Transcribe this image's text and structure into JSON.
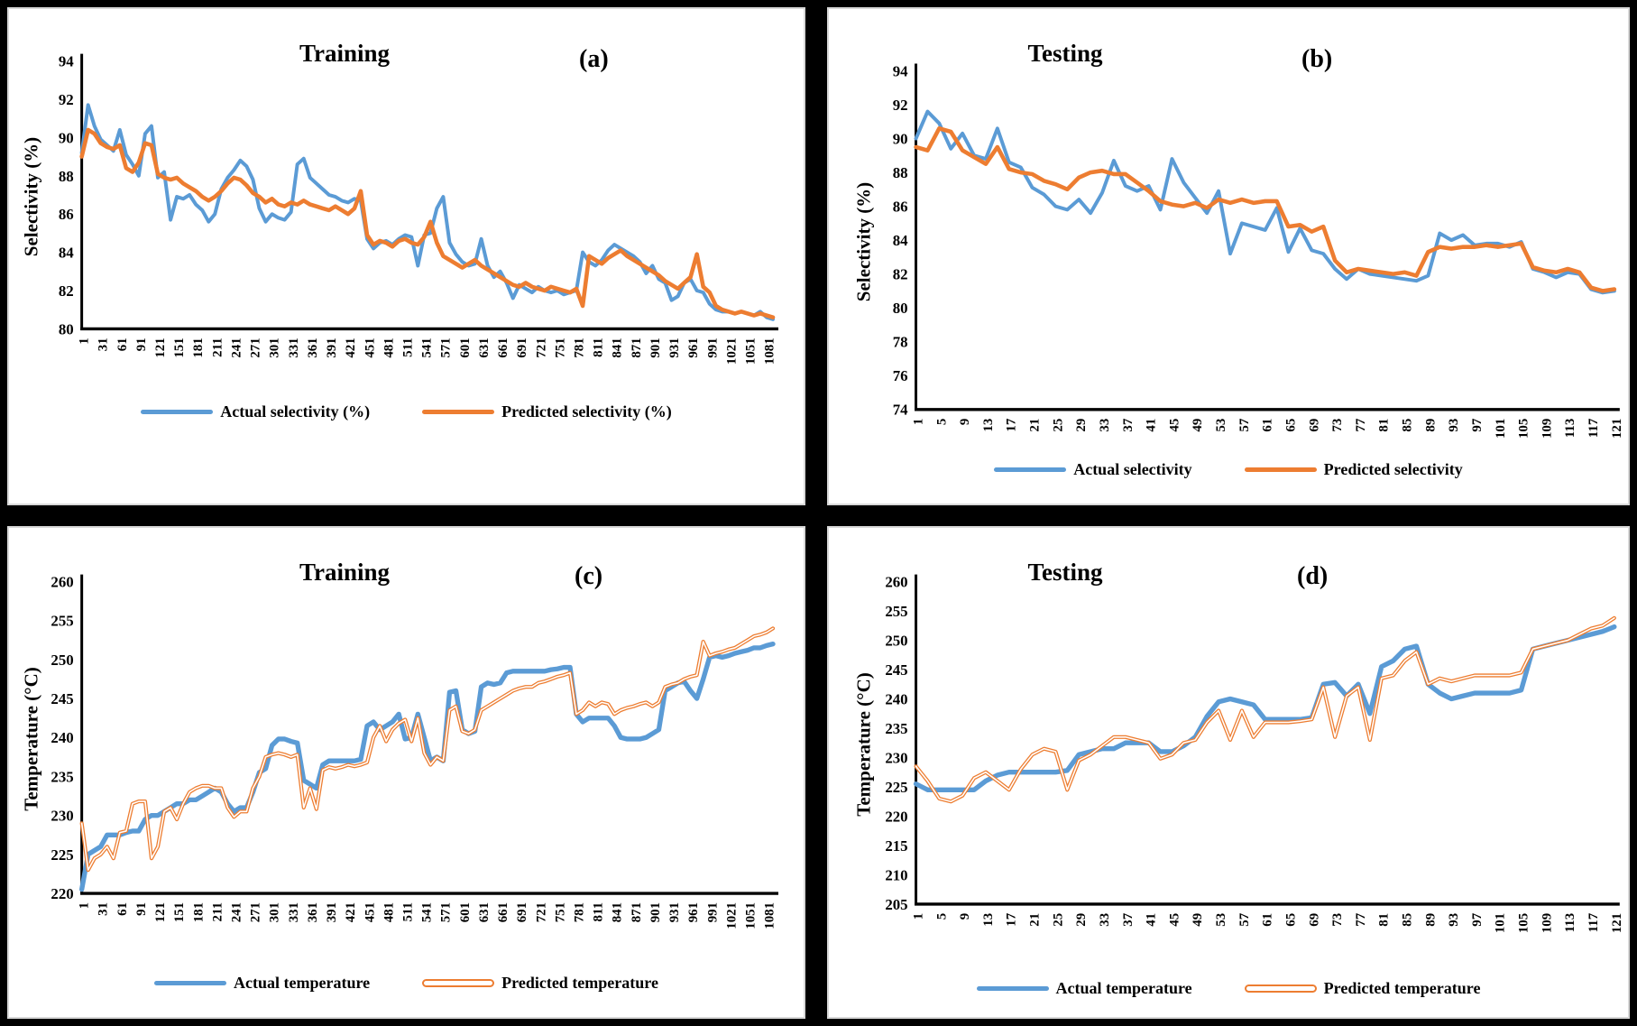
{
  "chart_data": [
    {
      "type": "line",
      "panel_label": "(a)",
      "title": "Training",
      "ylabel": "Selectivity (%)",
      "xlabel": "",
      "ylim": [
        80,
        94
      ],
      "ytick_step": 2,
      "x_ticks": [
        "1",
        "31",
        "61",
        "91",
        "121",
        "151",
        "181",
        "211",
        "241",
        "271",
        "301",
        "331",
        "361",
        "391",
        "421",
        "451",
        "481",
        "511",
        "541",
        "571",
        "601",
        "631",
        "661",
        "691",
        "721",
        "751",
        "781",
        "811",
        "841",
        "871",
        "901",
        "931",
        "961",
        "991",
        "1021",
        "1051",
        "1081"
      ],
      "x_end": 1090,
      "grid": false,
      "legend_position": "bottom",
      "note": "curves downsampled; x spans 1-1090",
      "series": [
        {
          "name": "Actual selectivity (%)",
          "color": "#5B9BD5",
          "style": "solid",
          "values": [
            89.2,
            91.7,
            90.6,
            89.9,
            89.6,
            89.3,
            90.4,
            89.1,
            88.6,
            88.0,
            90.2,
            90.6,
            87.9,
            88.2,
            85.7,
            86.9,
            86.8,
            87.0,
            86.5,
            86.2,
            85.6,
            86.0,
            87.3,
            87.9,
            88.3,
            88.8,
            88.5,
            87.8,
            86.3,
            85.6,
            86.0,
            85.8,
            85.7,
            86.1,
            88.6,
            88.9,
            87.9,
            87.6,
            87.3,
            87.0,
            86.9,
            86.7,
            86.6,
            86.8,
            86.7,
            84.7,
            84.2,
            84.5,
            84.6,
            84.4,
            84.7,
            84.9,
            84.8,
            83.3,
            84.9,
            85.0,
            86.3,
            86.9,
            84.5,
            83.9,
            83.5,
            83.3,
            83.4,
            84.7,
            83.3,
            82.7,
            83.0,
            82.4,
            81.6,
            82.3,
            82.1,
            81.9,
            82.2,
            82.0,
            81.9,
            82.0,
            81.8,
            81.9,
            82.0,
            84.0,
            83.5,
            83.3,
            83.6,
            84.1,
            84.4,
            84.2,
            84.0,
            83.8,
            83.5,
            82.9,
            83.3,
            82.6,
            82.4,
            81.5,
            81.7,
            82.4,
            82.6,
            82.0,
            81.9,
            81.3,
            81.0,
            80.9,
            80.9,
            80.8,
            80.9,
            80.8,
            80.7,
            80.9,
            80.6,
            80.5
          ]
        },
        {
          "name": "Predicted selectivity (%)",
          "color": "#ED7D31",
          "style": "solid",
          "values": [
            89.0,
            90.4,
            90.2,
            89.7,
            89.5,
            89.4,
            89.6,
            88.4,
            88.2,
            88.7,
            89.7,
            89.6,
            88.1,
            87.9,
            87.8,
            87.9,
            87.6,
            87.4,
            87.2,
            86.9,
            86.7,
            86.9,
            87.2,
            87.6,
            87.9,
            87.8,
            87.5,
            87.1,
            86.9,
            86.6,
            86.8,
            86.5,
            86.4,
            86.6,
            86.5,
            86.7,
            86.5,
            86.4,
            86.3,
            86.2,
            86.4,
            86.2,
            86.0,
            86.3,
            87.2,
            84.9,
            84.4,
            84.6,
            84.5,
            84.3,
            84.6,
            84.7,
            84.5,
            84.4,
            84.8,
            85.6,
            84.5,
            83.8,
            83.6,
            83.4,
            83.2,
            83.4,
            83.6,
            83.3,
            83.1,
            82.9,
            82.7,
            82.5,
            82.3,
            82.2,
            82.4,
            82.2,
            82.1,
            82.0,
            82.2,
            82.1,
            82.0,
            81.9,
            82.1,
            81.2,
            83.8,
            83.6,
            83.4,
            83.7,
            83.9,
            84.1,
            83.8,
            83.6,
            83.4,
            83.2,
            83.0,
            82.8,
            82.5,
            82.3,
            82.1,
            82.4,
            82.7,
            83.9,
            82.2,
            81.9,
            81.2,
            81.0,
            80.9,
            80.8,
            80.9,
            80.8,
            80.7,
            80.8,
            80.7,
            80.6
          ]
        }
      ]
    },
    {
      "type": "line",
      "panel_label": "(b)",
      "title": "Testing",
      "ylabel": "Selectivity (%)",
      "xlabel": "",
      "ylim": [
        74,
        94
      ],
      "ytick_step": 2,
      "x_ticks": [
        "1",
        "5",
        "9",
        "13",
        "17",
        "21",
        "25",
        "29",
        "33",
        "37",
        "41",
        "45",
        "49",
        "53",
        "57",
        "61",
        "65",
        "69",
        "73",
        "77",
        "81",
        "85",
        "89",
        "93",
        "97",
        "101",
        "105",
        "109",
        "113",
        "117",
        "121"
      ],
      "x_end": 121,
      "grid": false,
      "legend_position": "bottom",
      "series": [
        {
          "name": "Actual selectivity",
          "color": "#5B9BD5",
          "style": "solid",
          "values": [
            90.0,
            91.6,
            90.9,
            89.4,
            90.3,
            89.0,
            88.8,
            90.6,
            88.6,
            88.3,
            87.1,
            86.7,
            86.0,
            85.8,
            86.4,
            85.6,
            86.8,
            88.7,
            87.2,
            86.9,
            87.2,
            85.8,
            88.8,
            87.4,
            86.5,
            85.6,
            86.9,
            83.2,
            85.0,
            84.8,
            84.6,
            85.9,
            83.3,
            84.7,
            83.4,
            83.2,
            82.3,
            81.7,
            82.3,
            82.0,
            81.9,
            81.8,
            81.7,
            81.6,
            81.9,
            84.4,
            84.0,
            84.3,
            83.7,
            83.8,
            83.8,
            83.6,
            83.9,
            82.3,
            82.1,
            81.8,
            82.1,
            82.0,
            81.1,
            80.9,
            81.0
          ]
        },
        {
          "name": "Predicted selectivity",
          "color": "#ED7D31",
          "style": "solid",
          "values": [
            89.5,
            89.3,
            90.6,
            90.4,
            89.3,
            88.9,
            88.5,
            89.5,
            88.2,
            88.0,
            87.9,
            87.5,
            87.3,
            87.0,
            87.7,
            88.0,
            88.1,
            87.9,
            87.9,
            87.4,
            86.9,
            86.3,
            86.1,
            86.0,
            86.2,
            85.9,
            86.4,
            86.2,
            86.4,
            86.2,
            86.3,
            86.3,
            84.8,
            84.9,
            84.5,
            84.8,
            82.8,
            82.1,
            82.3,
            82.2,
            82.1,
            82.0,
            82.1,
            81.9,
            83.3,
            83.6,
            83.5,
            83.6,
            83.6,
            83.7,
            83.6,
            83.7,
            83.8,
            82.4,
            82.2,
            82.1,
            82.3,
            82.1,
            81.2,
            81.0,
            81.1
          ]
        }
      ]
    },
    {
      "type": "line",
      "panel_label": "(c)",
      "title": "Training",
      "ylabel": "Temperature (°C)",
      "xlabel": "",
      "ylim": [
        220,
        260
      ],
      "ytick_step": 5,
      "x_ticks": [
        "1",
        "31",
        "61",
        "91",
        "121",
        "151",
        "181",
        "211",
        "241",
        "271",
        "301",
        "331",
        "361",
        "391",
        "421",
        "451",
        "481",
        "511",
        "541",
        "571",
        "601",
        "631",
        "661",
        "691",
        "721",
        "751",
        "781",
        "811",
        "841",
        "871",
        "901",
        "931",
        "961",
        "991",
        "1021",
        "1051",
        "1081"
      ],
      "x_end": 1090,
      "grid": false,
      "legend_position": "bottom",
      "note": "curves downsampled; x spans 1-1090",
      "series": [
        {
          "name": "Actual temperature",
          "color": "#5B9BD5",
          "style": "solid",
          "values": [
            220.5,
            225.0,
            225.5,
            226.0,
            227.5,
            227.5,
            227.5,
            227.8,
            228.0,
            228.0,
            229.5,
            230.0,
            230.0,
            230.5,
            231.0,
            231.5,
            231.5,
            232.0,
            232.0,
            232.5,
            233.0,
            233.5,
            233.0,
            231.5,
            230.5,
            231.0,
            231.0,
            233.0,
            235.5,
            236.0,
            239.0,
            239.8,
            239.8,
            239.5,
            239.3,
            234.5,
            234.0,
            233.5,
            236.5,
            237.0,
            237.0,
            237.0,
            237.0,
            237.0,
            237.2,
            241.5,
            242.0,
            241.0,
            241.5,
            242.0,
            243.0,
            239.8,
            240.0,
            243.0,
            240.0,
            237.0,
            237.5,
            237.0,
            245.8,
            246.0,
            241.0,
            240.5,
            240.8,
            246.5,
            247.0,
            246.8,
            247.0,
            248.3,
            248.5,
            248.5,
            248.5,
            248.5,
            248.5,
            248.5,
            248.7,
            248.8,
            249.0,
            249.0,
            243.0,
            242.0,
            242.5,
            242.5,
            242.5,
            242.5,
            241.5,
            240.0,
            239.8,
            239.8,
            239.8,
            240.0,
            240.5,
            241.0,
            246.0,
            246.5,
            247.0,
            247.2,
            246.0,
            245.0,
            247.5,
            250.3,
            250.5,
            250.3,
            250.5,
            250.8,
            251.0,
            251.2,
            251.5,
            251.5,
            251.8,
            252.0
          ]
        },
        {
          "name": "Predicted temperature",
          "color": "#ED7D31",
          "style": "hollow",
          "values": [
            229.0,
            223.0,
            224.5,
            225.0,
            226.0,
            224.5,
            227.8,
            228.0,
            231.5,
            231.8,
            231.8,
            224.5,
            226.0,
            230.5,
            231.0,
            229.5,
            231.5,
            233.0,
            233.5,
            233.8,
            233.8,
            233.5,
            233.5,
            231.0,
            229.8,
            230.5,
            230.5,
            233.5,
            235.0,
            237.5,
            237.8,
            238.0,
            237.8,
            237.5,
            237.8,
            231.0,
            233.5,
            230.8,
            235.8,
            236.2,
            236.0,
            236.2,
            236.5,
            236.3,
            236.5,
            236.8,
            240.0,
            241.5,
            239.5,
            241.0,
            241.8,
            242.3,
            239.5,
            242.5,
            238.0,
            236.5,
            237.5,
            237.0,
            243.5,
            244.0,
            240.8,
            240.5,
            241.0,
            243.5,
            244.0,
            244.5,
            245.0,
            245.5,
            246.0,
            246.3,
            246.5,
            246.5,
            247.0,
            247.2,
            247.5,
            247.8,
            248.0,
            248.3,
            243.0,
            243.5,
            244.5,
            244.0,
            244.5,
            244.3,
            243.0,
            243.5,
            243.8,
            244.0,
            244.3,
            244.5,
            244.0,
            244.5,
            246.5,
            246.8,
            247.0,
            247.5,
            247.8,
            248.0,
            252.3,
            250.5,
            250.8,
            251.0,
            251.3,
            251.5,
            252.0,
            252.5,
            253.0,
            253.2,
            253.5,
            254.0
          ]
        }
      ]
    },
    {
      "type": "line",
      "panel_label": "(d)",
      "title": "Testing",
      "ylabel": "Temperature (°C)",
      "xlabel": "",
      "ylim": [
        205,
        260
      ],
      "ytick_step": 5,
      "x_ticks": [
        "1",
        "5",
        "9",
        "13",
        "17",
        "21",
        "25",
        "29",
        "33",
        "37",
        "41",
        "45",
        "49",
        "53",
        "57",
        "61",
        "65",
        "69",
        "73",
        "77",
        "81",
        "85",
        "89",
        "93",
        "97",
        "101",
        "105",
        "109",
        "113",
        "117",
        "121"
      ],
      "x_end": 121,
      "grid": false,
      "legend_position": "bottom",
      "series": [
        {
          "name": "Actual temperature",
          "color": "#5B9BD5",
          "style": "solid",
          "values": [
            225.5,
            224.5,
            224.5,
            224.5,
            224.5,
            224.5,
            226.0,
            227.0,
            227.5,
            227.5,
            227.5,
            227.5,
            227.5,
            227.8,
            230.5,
            231.0,
            231.5,
            231.5,
            232.5,
            232.5,
            232.5,
            231.0,
            231.0,
            232.0,
            233.5,
            237.0,
            239.5,
            240.0,
            239.5,
            239.0,
            236.5,
            236.5,
            236.5,
            236.5,
            236.8,
            242.5,
            242.8,
            240.5,
            242.5,
            237.5,
            245.5,
            246.5,
            248.5,
            249.0,
            242.5,
            241.0,
            240.0,
            240.5,
            241.0,
            241.0,
            241.0,
            241.0,
            241.5,
            248.5,
            249.0,
            249.5,
            250.0,
            250.5,
            251.0,
            251.5,
            252.3
          ]
        },
        {
          "name": "Predicted temperature",
          "color": "#ED7D31",
          "style": "hollow",
          "values": [
            228.5,
            226.0,
            223.0,
            222.5,
            223.5,
            226.5,
            227.5,
            226.0,
            224.5,
            228.0,
            230.5,
            231.5,
            231.0,
            224.5,
            229.5,
            230.5,
            232.0,
            233.5,
            233.5,
            233.0,
            232.5,
            229.8,
            230.5,
            232.5,
            233.0,
            236.0,
            238.0,
            233.0,
            238.0,
            233.5,
            236.0,
            236.0,
            236.0,
            236.2,
            236.5,
            242.0,
            233.5,
            240.5,
            242.0,
            233.0,
            243.5,
            244.0,
            246.5,
            248.0,
            242.5,
            243.5,
            243.0,
            243.5,
            244.0,
            244.0,
            244.0,
            244.0,
            244.5,
            248.5,
            249.0,
            249.5,
            250.0,
            251.0,
            252.0,
            252.5,
            253.8
          ]
        }
      ]
    }
  ]
}
